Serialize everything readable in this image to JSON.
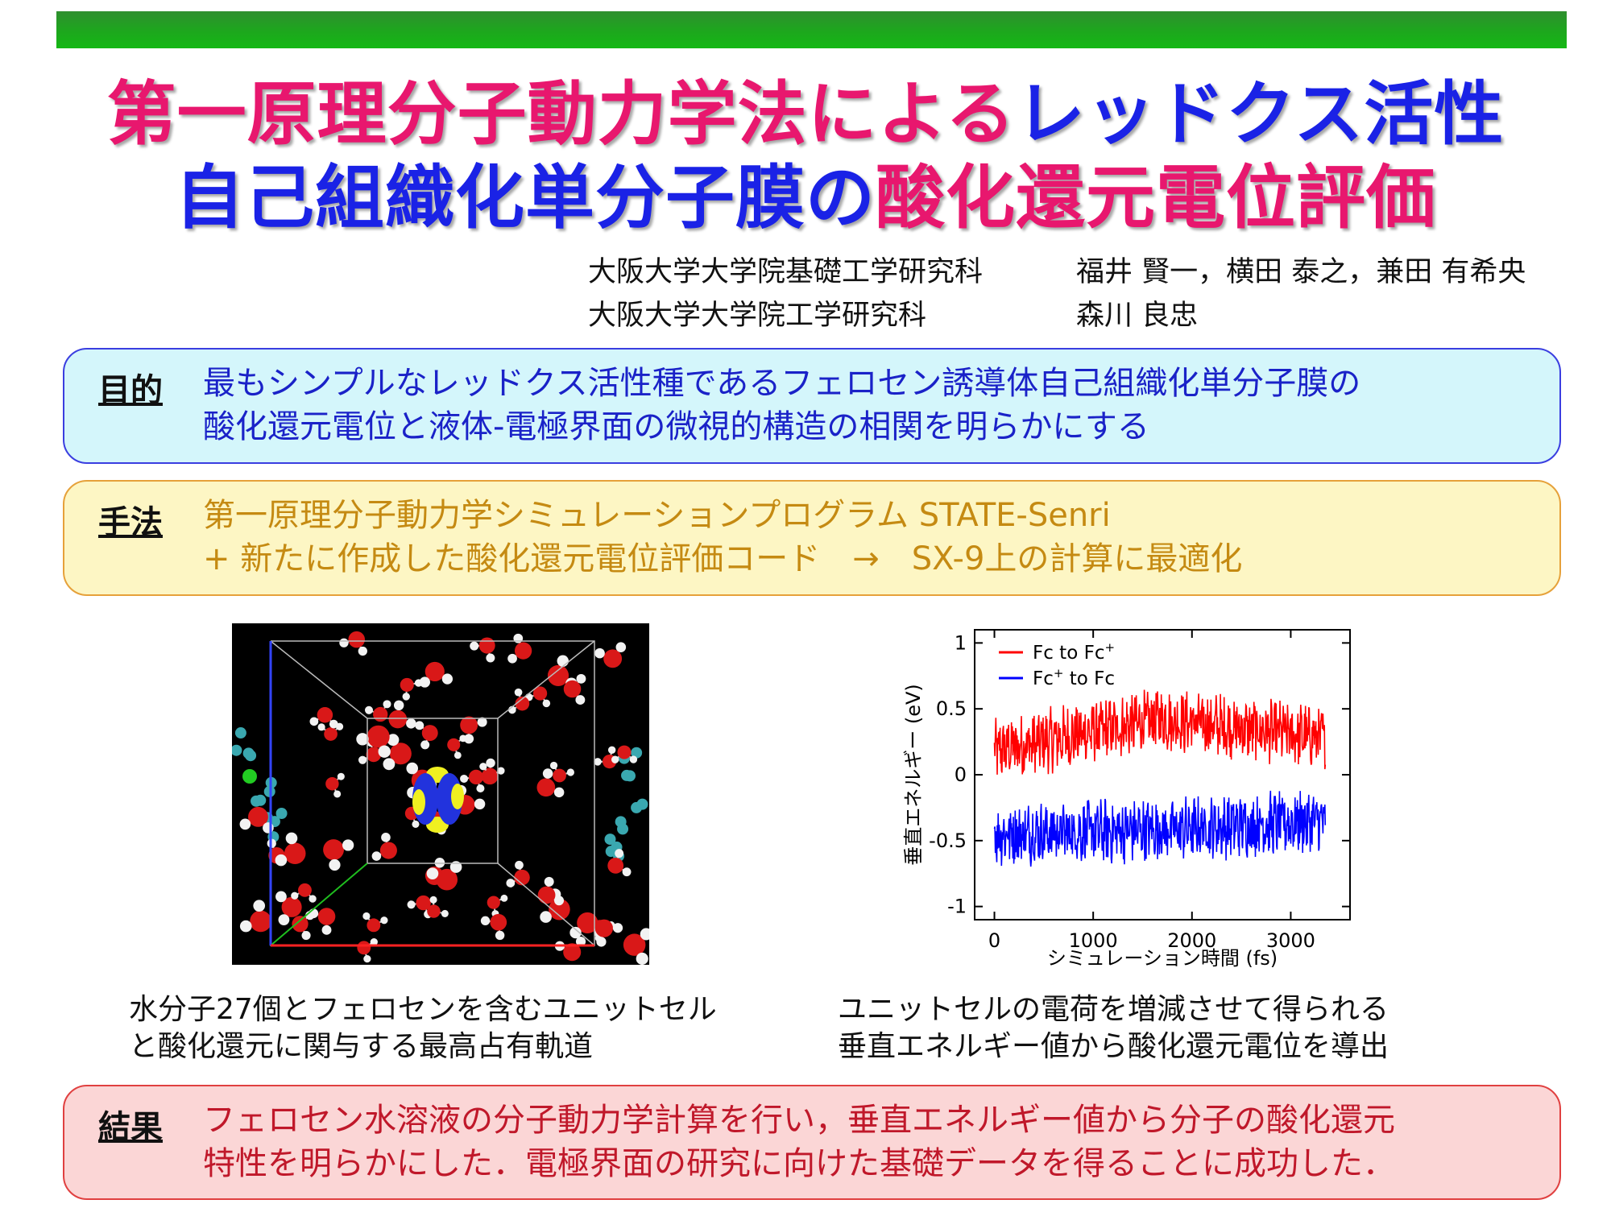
{
  "title": {
    "line1": [
      {
        "text": "第一原理分子動力学法による",
        "color": "#e8176e"
      },
      {
        "text": "レッドクス活性",
        "color": "#1a22e6"
      }
    ],
    "line2": [
      {
        "text": "自己組織化単分子膜",
        "color": "#1a22e6"
      },
      {
        "text": "の",
        "color": "#1a22e6"
      },
      {
        "text": "酸化還元電位評価",
        "color": "#e8176e"
      }
    ]
  },
  "affiliations": [
    {
      "org": "大阪大学大学院基礎工学研究科",
      "names": "福井 賢一，横田 泰之，兼田 有希央"
    },
    {
      "org": "大阪大学大学院工学研究科",
      "names": "森川 良忠"
    }
  ],
  "purpose": {
    "label": "目的",
    "lines": [
      "最もシンプルなレッドクス活性種であるフェロセン誘導体自己組織化単分子膜の",
      "酸化還元電位と液体-電極界面の微視的構造の相関を明らかにする"
    ]
  },
  "method": {
    "label": "手法",
    "lines": [
      "第一原理分子動力学シミュレーションプログラム STATE-Senri",
      "+ 新たに作成した酸化還元電位評価コード　→　SX-9上の計算に最適化"
    ]
  },
  "figure_caption": [
    "水分子27個とフェロセンを含むユニットセル",
    "と酸化還元に関与する最高占有軌道"
  ],
  "chart_caption": [
    "ユニットセルの電荷を増減させて得られる",
    "垂直エネルギー値から酸化還元電位を導出"
  ],
  "result": {
    "label": "結果",
    "lines": [
      "フェロセン水溶液の分子動力学計算を行い，垂直エネルギー値から分子の酸化還元",
      "特性を明らかにした．電極界面の研究に向けた基礎データを得ることに成功した．"
    ]
  },
  "colors": {
    "title_pink": "#e8176e",
    "title_blue": "#1a22e6",
    "header_bar": "#1ea51e"
  },
  "chart_data": {
    "type": "line",
    "xlabel": "シミュレーション時間 (fs)",
    "ylabel": "垂直エネルギー (eV)",
    "xlim": [
      -200,
      3600
    ],
    "ylim": [
      -1.1,
      1.1
    ],
    "xticks": [
      0,
      1000,
      2000,
      3000
    ],
    "yticks": [
      1,
      0.5,
      0,
      -0.5,
      -1
    ],
    "ytick_labels": [
      "1",
      "0.5",
      "0",
      "-0.5",
      "-1"
    ],
    "legend_placement": "top-left",
    "series": [
      {
        "name": "Fc to Fc+",
        "legend_base": "Fc to Fc",
        "legend_sup": "+",
        "color": "#ff0000",
        "x_start": 0,
        "x_end": 3350,
        "mean_start": 0.18,
        "mean_mid": 0.42,
        "mean_end": 0.28,
        "amplitude": 0.2
      },
      {
        "name": "Fc+ to Fc",
        "legend_base": "Fc",
        "legend_sup": "+",
        "legend_tail": " to Fc",
        "color": "#0000ff",
        "x_start": 0,
        "x_end": 3350,
        "mean_start": -0.45,
        "mean_mid": -0.42,
        "mean_end": -0.35,
        "amplitude": 0.2
      }
    ]
  }
}
